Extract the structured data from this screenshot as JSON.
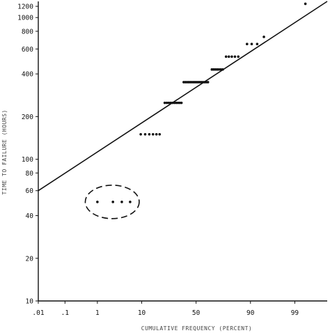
{
  "chart_data": {
    "type": "scatter",
    "title": "",
    "xlabel": "CUMULATIVE FREQUENCY (PERCENT)",
    "ylabel": "TIME TO FAILURE (HOURS)",
    "x_scale": "probability",
    "y_scale": "log",
    "xlim": [
      0.01,
      99.9
    ],
    "ylim": [
      10,
      1300
    ],
    "x_ticks": [
      {
        "value": 0.01,
        "label": ".01"
      },
      {
        "value": 0.1,
        "label": ".1"
      },
      {
        "value": 1,
        "label": "1"
      },
      {
        "value": 10,
        "label": "10"
      },
      {
        "value": 50,
        "label": "50"
      },
      {
        "value": 90,
        "label": "90"
      },
      {
        "value": 99,
        "label": "99"
      }
    ],
    "y_ticks": [
      {
        "value": 10,
        "label": "10"
      },
      {
        "value": 20,
        "label": "20"
      },
      {
        "value": 40,
        "label": "40"
      },
      {
        "value": 60,
        "label": "60"
      },
      {
        "value": 80,
        "label": "80"
      },
      {
        "value": 100,
        "label": "100"
      },
      {
        "value": 200,
        "label": "200"
      },
      {
        "value": 400,
        "label": "400"
      },
      {
        "value": 600,
        "label": "600"
      },
      {
        "value": 800,
        "label": "800"
      },
      {
        "value": 1000,
        "label": "1000"
      },
      {
        "value": 1200,
        "label": "1200"
      }
    ],
    "grid": false,
    "fit_line": {
      "x": [
        0.01,
        99.9
      ],
      "y": [
        60,
        1300
      ]
    },
    "highlight": {
      "shape": "dashed-ellipse",
      "x_range": [
        0.45,
        9
      ],
      "y": 50
    },
    "series": [
      {
        "marker": "dot",
        "points": [
          {
            "x": 1.0,
            "y": 50
          },
          {
            "x": 2.5,
            "y": 50
          },
          {
            "x": 4.0,
            "y": 50
          },
          {
            "x": 6.0,
            "y": 50
          },
          {
            "x": 9.6,
            "y": 150
          },
          {
            "x": 11.5,
            "y": 150
          },
          {
            "x": 13.5,
            "y": 150
          },
          {
            "x": 15.5,
            "y": 150
          },
          {
            "x": 17.5,
            "y": 150
          },
          {
            "x": 19.5,
            "y": 150
          },
          {
            "x": 23.0,
            "y": 250
          },
          {
            "x": 24.5,
            "y": 250
          },
          {
            "x": 26.0,
            "y": 250
          },
          {
            "x": 27.5,
            "y": 250
          },
          {
            "x": 29.0,
            "y": 250
          },
          {
            "x": 30.5,
            "y": 250
          },
          {
            "x": 32.0,
            "y": 250
          },
          {
            "x": 33.5,
            "y": 250
          },
          {
            "x": 35.0,
            "y": 250
          },
          {
            "x": 36.5,
            "y": 250
          },
          {
            "x": 38.5,
            "y": 350
          },
          {
            "x": 40.0,
            "y": 350
          },
          {
            "x": 41.5,
            "y": 350
          },
          {
            "x": 43.0,
            "y": 350
          },
          {
            "x": 44.5,
            "y": 350
          },
          {
            "x": 46.0,
            "y": 350
          },
          {
            "x": 47.5,
            "y": 350
          },
          {
            "x": 49.0,
            "y": 350
          },
          {
            "x": 50.5,
            "y": 350
          },
          {
            "x": 52.0,
            "y": 350
          },
          {
            "x": 53.5,
            "y": 350
          },
          {
            "x": 55.0,
            "y": 350
          },
          {
            "x": 56.5,
            "y": 350
          },
          {
            "x": 58.0,
            "y": 350
          },
          {
            "x": 59.5,
            "y": 350
          },
          {
            "x": 61.0,
            "y": 350
          },
          {
            "x": 64.5,
            "y": 430
          },
          {
            "x": 66.0,
            "y": 430
          },
          {
            "x": 67.5,
            "y": 430
          },
          {
            "x": 69.0,
            "y": 430
          },
          {
            "x": 70.5,
            "y": 430
          },
          {
            "x": 72.0,
            "y": 430
          },
          {
            "x": 73.5,
            "y": 430
          },
          {
            "x": 76.0,
            "y": 530
          },
          {
            "x": 78.0,
            "y": 530
          },
          {
            "x": 80.0,
            "y": 530
          },
          {
            "x": 82.0,
            "y": 530
          },
          {
            "x": 84.0,
            "y": 530
          },
          {
            "x": 88.5,
            "y": 650
          },
          {
            "x": 90.5,
            "y": 650
          },
          {
            "x": 92.5,
            "y": 650
          },
          {
            "x": 94.5,
            "y": 730
          },
          {
            "x": 99.5,
            "y": 1250
          }
        ]
      }
    ]
  }
}
